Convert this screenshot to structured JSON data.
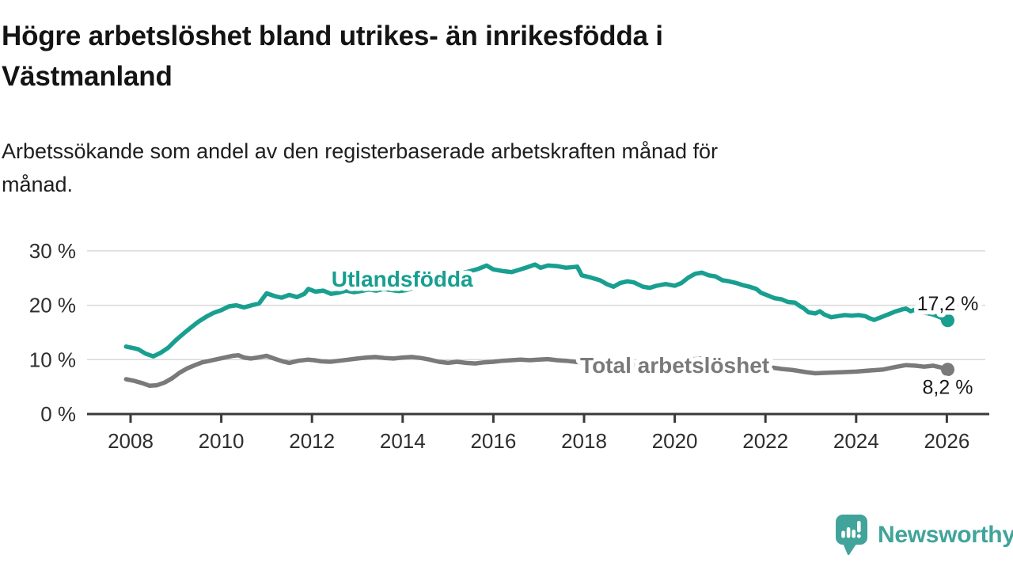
{
  "header": {
    "title_lines": [
      "Högre arbetslöshet bland utrikes- än inrikesfödda i",
      "Västmanland"
    ],
    "subtitle_lines": [
      "Arbetssökande som andel av den registerbaserade arbetskraften månad för",
      "månad."
    ]
  },
  "chart_data": {
    "type": "line",
    "title": "Högre arbetslöshet bland utrikes- än inrikesfödda i Västmanland",
    "subtitle": "Arbetssökande som andel av den registerbaserade arbetskraften månad för månad.",
    "xlabel": "",
    "ylabel": "%",
    "xlim": [
      2007.9,
      2026.9
    ],
    "ylim": [
      0,
      33
    ],
    "grid": "horizontal",
    "grid_color": "#d9d9d9",
    "axis_color": "#3a3a3a",
    "xticks": [
      2008,
      2010,
      2012,
      2014,
      2016,
      2018,
      2020,
      2022,
      2024,
      2026
    ],
    "xtick_labels": [
      "2008",
      "2010",
      "2012",
      "2014",
      "2016",
      "2018",
      "2020",
      "2022",
      "2024",
      "2026"
    ],
    "yticks": [
      0,
      10,
      20,
      30
    ],
    "ytick_labels": [
      "0 %",
      "10 %",
      "20 %",
      "30 %"
    ],
    "legend_position": "inline-labels",
    "series": [
      {
        "name": "Utlandsfödda",
        "color": "#189f90",
        "label_anchor": {
          "x": 2013.99,
          "y": 23.45
        },
        "end_label": {
          "text": "17,2 %",
          "position": "above"
        },
        "points": [
          [
            2007.9,
            12.4
          ],
          [
            2008.08,
            12.1
          ],
          [
            2008.17,
            11.9
          ],
          [
            2008.33,
            11.1
          ],
          [
            2008.5,
            10.6
          ],
          [
            2008.67,
            11.3
          ],
          [
            2008.83,
            12.2
          ],
          [
            2009.0,
            13.6
          ],
          [
            2009.17,
            14.8
          ],
          [
            2009.33,
            15.9
          ],
          [
            2009.5,
            17.0
          ],
          [
            2009.67,
            17.9
          ],
          [
            2009.83,
            18.6
          ],
          [
            2010.0,
            19.1
          ],
          [
            2010.17,
            19.8
          ],
          [
            2010.33,
            20.0
          ],
          [
            2010.5,
            19.6
          ],
          [
            2010.67,
            20.0
          ],
          [
            2010.83,
            20.3
          ],
          [
            2011.0,
            22.2
          ],
          [
            2011.17,
            21.7
          ],
          [
            2011.33,
            21.4
          ],
          [
            2011.5,
            21.9
          ],
          [
            2011.67,
            21.5
          ],
          [
            2011.83,
            22.1
          ],
          [
            2011.92,
            23.0
          ],
          [
            2012.08,
            22.5
          ],
          [
            2012.25,
            22.7
          ],
          [
            2012.42,
            22.1
          ],
          [
            2012.58,
            22.3
          ],
          [
            2012.75,
            22.7
          ],
          [
            2012.92,
            22.4
          ],
          [
            2013.08,
            22.6
          ],
          [
            2013.25,
            22.9
          ],
          [
            2013.42,
            22.7
          ],
          [
            2013.58,
            23.0
          ],
          [
            2013.75,
            22.8
          ],
          [
            2013.92,
            22.6
          ],
          [
            2014.08,
            22.8
          ],
          [
            2014.25,
            23.2
          ],
          [
            2014.5,
            23.9
          ],
          [
            2014.75,
            24.6
          ],
          [
            2015.0,
            25.2
          ],
          [
            2015.25,
            25.8
          ],
          [
            2015.5,
            26.3
          ],
          [
            2015.67,
            26.7
          ],
          [
            2015.85,
            27.3
          ],
          [
            2016.0,
            26.6
          ],
          [
            2016.2,
            26.3
          ],
          [
            2016.4,
            26.1
          ],
          [
            2016.6,
            26.6
          ],
          [
            2016.75,
            27.0
          ],
          [
            2016.92,
            27.5
          ],
          [
            2017.04,
            26.9
          ],
          [
            2017.2,
            27.3
          ],
          [
            2017.4,
            27.2
          ],
          [
            2017.6,
            26.9
          ],
          [
            2017.85,
            27.1
          ],
          [
            2017.95,
            25.5
          ],
          [
            2018.15,
            25.1
          ],
          [
            2018.35,
            24.6
          ],
          [
            2018.5,
            23.9
          ],
          [
            2018.65,
            23.4
          ],
          [
            2018.8,
            24.1
          ],
          [
            2018.95,
            24.4
          ],
          [
            2019.1,
            24.2
          ],
          [
            2019.3,
            23.4
          ],
          [
            2019.45,
            23.2
          ],
          [
            2019.6,
            23.6
          ],
          [
            2019.8,
            23.9
          ],
          [
            2020.0,
            23.6
          ],
          [
            2020.15,
            24.1
          ],
          [
            2020.3,
            25.1
          ],
          [
            2020.45,
            25.8
          ],
          [
            2020.6,
            26.0
          ],
          [
            2020.75,
            25.5
          ],
          [
            2020.9,
            25.3
          ],
          [
            2021.05,
            24.6
          ],
          [
            2021.2,
            24.4
          ],
          [
            2021.35,
            24.1
          ],
          [
            2021.5,
            23.7
          ],
          [
            2021.65,
            23.4
          ],
          [
            2021.8,
            23.0
          ],
          [
            2021.9,
            22.3
          ],
          [
            2022.05,
            21.8
          ],
          [
            2022.2,
            21.3
          ],
          [
            2022.35,
            21.1
          ],
          [
            2022.5,
            20.6
          ],
          [
            2022.65,
            20.5
          ],
          [
            2022.75,
            19.9
          ],
          [
            2022.85,
            19.4
          ],
          [
            2022.95,
            18.7
          ],
          [
            2023.1,
            18.5
          ],
          [
            2023.2,
            18.9
          ],
          [
            2023.3,
            18.3
          ],
          [
            2023.45,
            17.8
          ],
          [
            2023.6,
            18.0
          ],
          [
            2023.75,
            18.2
          ],
          [
            2023.9,
            18.1
          ],
          [
            2024.05,
            18.2
          ],
          [
            2024.2,
            18.0
          ],
          [
            2024.3,
            17.6
          ],
          [
            2024.4,
            17.3
          ],
          [
            2024.55,
            17.8
          ],
          [
            2024.7,
            18.3
          ],
          [
            2024.85,
            18.8
          ],
          [
            2025.0,
            19.2
          ],
          [
            2025.1,
            19.4
          ],
          [
            2025.2,
            18.9
          ],
          [
            2025.3,
            19.2
          ],
          [
            2025.45,
            18.7
          ],
          [
            2025.6,
            18.5
          ],
          [
            2025.7,
            18.3
          ],
          [
            2025.85,
            17.8
          ],
          [
            2025.95,
            17.4
          ],
          [
            2026.02,
            17.2
          ]
        ]
      },
      {
        "name": "Total arbetslöshet",
        "color": "#7a7a7a",
        "label_anchor": {
          "x": 2020.0,
          "y": 7.6
        },
        "end_label": {
          "text": "8,2 %",
          "position": "below"
        },
        "points": [
          [
            2007.9,
            6.4
          ],
          [
            2008.08,
            6.1
          ],
          [
            2008.25,
            5.7
          ],
          [
            2008.42,
            5.2
          ],
          [
            2008.58,
            5.3
          ],
          [
            2008.75,
            5.8
          ],
          [
            2008.92,
            6.6
          ],
          [
            2009.08,
            7.6
          ],
          [
            2009.25,
            8.4
          ],
          [
            2009.42,
            9.0
          ],
          [
            2009.58,
            9.5
          ],
          [
            2009.75,
            9.8
          ],
          [
            2009.92,
            10.1
          ],
          [
            2010.08,
            10.4
          ],
          [
            2010.25,
            10.7
          ],
          [
            2010.38,
            10.8
          ],
          [
            2010.5,
            10.4
          ],
          [
            2010.65,
            10.2
          ],
          [
            2010.8,
            10.4
          ],
          [
            2011.0,
            10.7
          ],
          [
            2011.2,
            10.1
          ],
          [
            2011.35,
            9.7
          ],
          [
            2011.5,
            9.4
          ],
          [
            2011.7,
            9.8
          ],
          [
            2011.9,
            10.0
          ],
          [
            2012.05,
            9.9
          ],
          [
            2012.2,
            9.7
          ],
          [
            2012.4,
            9.6
          ],
          [
            2012.6,
            9.8
          ],
          [
            2012.8,
            10.0
          ],
          [
            2013.0,
            10.2
          ],
          [
            2013.2,
            10.4
          ],
          [
            2013.4,
            10.5
          ],
          [
            2013.6,
            10.3
          ],
          [
            2013.8,
            10.2
          ],
          [
            2014.0,
            10.4
          ],
          [
            2014.2,
            10.5
          ],
          [
            2014.4,
            10.3
          ],
          [
            2014.6,
            10.0
          ],
          [
            2014.8,
            9.6
          ],
          [
            2015.0,
            9.4
          ],
          [
            2015.2,
            9.6
          ],
          [
            2015.4,
            9.4
          ],
          [
            2015.6,
            9.3
          ],
          [
            2015.8,
            9.5
          ],
          [
            2016.0,
            9.6
          ],
          [
            2016.2,
            9.8
          ],
          [
            2016.4,
            9.9
          ],
          [
            2016.6,
            10.0
          ],
          [
            2016.8,
            9.9
          ],
          [
            2017.0,
            10.0
          ],
          [
            2017.2,
            10.1
          ],
          [
            2017.4,
            9.9
          ],
          [
            2017.6,
            9.8
          ],
          [
            2017.9,
            9.5
          ],
          [
            2018.2,
            9.3
          ],
          [
            2018.5,
            9.2
          ],
          [
            2018.8,
            9.1
          ],
          [
            2019.1,
            9.0
          ],
          [
            2019.4,
            8.9
          ],
          [
            2019.7,
            9.0
          ],
          [
            2020.0,
            9.3
          ],
          [
            2020.3,
            10.0
          ],
          [
            2020.6,
            10.2
          ],
          [
            2020.9,
            9.9
          ],
          [
            2021.2,
            9.5
          ],
          [
            2021.5,
            9.1
          ],
          [
            2021.8,
            8.8
          ],
          [
            2022.1,
            8.6
          ],
          [
            2022.35,
            8.3
          ],
          [
            2022.6,
            8.1
          ],
          [
            2022.9,
            7.7
          ],
          [
            2023.1,
            7.5
          ],
          [
            2023.4,
            7.6
          ],
          [
            2023.7,
            7.7
          ],
          [
            2024.0,
            7.8
          ],
          [
            2024.3,
            8.0
          ],
          [
            2024.6,
            8.2
          ],
          [
            2024.9,
            8.7
          ],
          [
            2025.1,
            9.0
          ],
          [
            2025.3,
            8.9
          ],
          [
            2025.5,
            8.7
          ],
          [
            2025.7,
            8.9
          ],
          [
            2025.85,
            8.6
          ],
          [
            2026.02,
            8.2
          ]
        ]
      }
    ]
  },
  "footer": {
    "brand": "Newsworthy",
    "brand_color": "#41a49b",
    "icon": "newsworthy-chart-bubble-icon"
  }
}
